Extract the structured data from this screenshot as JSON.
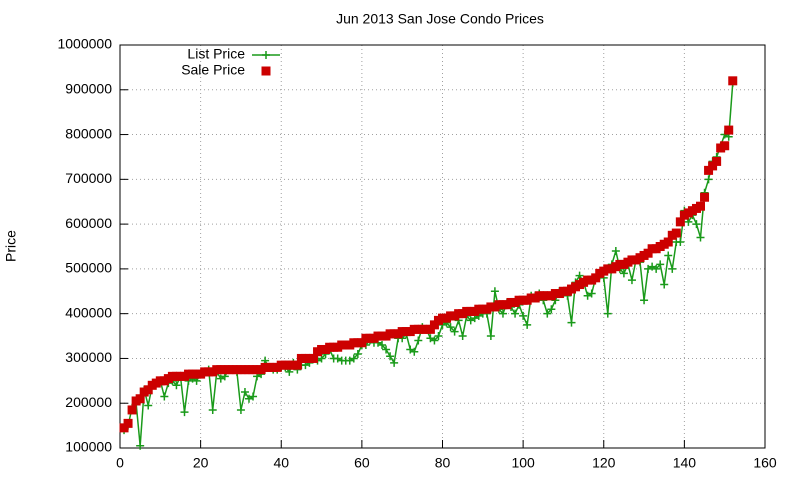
{
  "chart_data": {
    "type": "scatter",
    "title": "Jun 2013 San Jose Condo Prices",
    "y_label": "Price",
    "x": [
      1,
      2,
      3,
      4,
      5,
      6,
      7,
      8,
      9,
      10,
      11,
      12,
      13,
      14,
      15,
      16,
      17,
      18,
      19,
      20,
      21,
      22,
      23,
      24,
      25,
      26,
      27,
      28,
      29,
      30,
      31,
      32,
      33,
      34,
      35,
      36,
      37,
      38,
      39,
      40,
      41,
      42,
      43,
      44,
      45,
      46,
      47,
      48,
      49,
      50,
      51,
      52,
      53,
      54,
      55,
      56,
      57,
      58,
      59,
      60,
      61,
      62,
      63,
      64,
      65,
      66,
      67,
      68,
      69,
      70,
      71,
      72,
      73,
      74,
      75,
      76,
      77,
      78,
      79,
      80,
      81,
      82,
      83,
      84,
      85,
      86,
      87,
      88,
      89,
      90,
      91,
      92,
      93,
      94,
      95,
      96,
      97,
      98,
      99,
      100,
      101,
      102,
      103,
      104,
      105,
      106,
      107,
      108,
      109,
      110,
      111,
      112,
      113,
      114,
      115,
      116,
      117,
      118,
      119,
      120,
      121,
      122,
      123,
      124,
      125,
      126,
      127,
      128,
      129,
      130,
      131,
      132,
      133,
      134,
      135,
      136,
      137,
      138,
      139,
      140,
      141,
      142,
      143,
      144,
      145,
      146,
      147,
      148,
      149,
      150,
      151,
      152
    ],
    "series": [
      {
        "name": "List Price",
        "color": "#1a9a1a",
        "style": "linespoints",
        "values": [
          140000,
          150000,
          190000,
          200000,
          105000,
          230000,
          195000,
          240000,
          245000,
          250000,
          215000,
          245000,
          250000,
          240000,
          260000,
          180000,
          250000,
          255000,
          250000,
          265000,
          270000,
          275000,
          185000,
          270000,
          255000,
          260000,
          275000,
          275000,
          270000,
          185000,
          225000,
          210000,
          215000,
          260000,
          265000,
          295000,
          280000,
          275000,
          275000,
          280000,
          280000,
          270000,
          290000,
          275000,
          285000,
          285000,
          290000,
          300000,
          295000,
          300000,
          310000,
          320000,
          300000,
          300000,
          295000,
          295000,
          295000,
          300000,
          310000,
          330000,
          330000,
          340000,
          335000,
          335000,
          330000,
          320000,
          305000,
          290000,
          345000,
          345000,
          355000,
          320000,
          315000,
          340000,
          370000,
          365000,
          345000,
          340000,
          350000,
          375000,
          380000,
          370000,
          360000,
          385000,
          350000,
          395000,
          385000,
          390000,
          395000,
          400000,
          400000,
          350000,
          450000,
          410000,
          400000,
          425000,
          415000,
          400000,
          420000,
          395000,
          375000,
          440000,
          440000,
          445000,
          430000,
          400000,
          410000,
          430000,
          450000,
          445000,
          440000,
          380000,
          470000,
          485000,
          470000,
          440000,
          445000,
          480000,
          485000,
          480000,
          400000,
          510000,
          540000,
          500000,
          490000,
          510000,
          475000,
          520000,
          515000,
          430000,
          500000,
          505000,
          500000,
          510000,
          465000,
          530000,
          500000,
          560000,
          560000,
          630000,
          605000,
          620000,
          600000,
          570000,
          670000,
          700000,
          740000,
          750000,
          775000,
          800000,
          795000,
          915000
        ]
      },
      {
        "name": "Sale Price",
        "color": "#cc0000",
        "style": "points",
        "values": [
          145000,
          155000,
          185000,
          205000,
          210000,
          225000,
          230000,
          240000,
          245000,
          250000,
          250000,
          255000,
          260000,
          260000,
          260000,
          260000,
          265000,
          265000,
          265000,
          265000,
          270000,
          270000,
          270000,
          275000,
          275000,
          275000,
          275000,
          275000,
          275000,
          275000,
          275000,
          275000,
          275000,
          275000,
          275000,
          280000,
          280000,
          280000,
          280000,
          285000,
          285000,
          285000,
          285000,
          285000,
          300000,
          300000,
          300000,
          300000,
          315000,
          320000,
          320000,
          325000,
          325000,
          325000,
          330000,
          330000,
          330000,
          335000,
          335000,
          335000,
          345000,
          345000,
          345000,
          350000,
          350000,
          350000,
          355000,
          355000,
          355000,
          360000,
          360000,
          360000,
          365000,
          365000,
          365000,
          365000,
          365000,
          375000,
          385000,
          390000,
          390000,
          395000,
          395000,
          400000,
          400000,
          405000,
          405000,
          405000,
          410000,
          410000,
          410000,
          415000,
          415000,
          420000,
          420000,
          420000,
          425000,
          425000,
          430000,
          430000,
          430000,
          435000,
          435000,
          440000,
          440000,
          440000,
          440000,
          445000,
          445000,
          450000,
          450000,
          455000,
          460000,
          465000,
          470000,
          475000,
          475000,
          480000,
          490000,
          495000,
          500000,
          500000,
          505000,
          510000,
          510000,
          515000,
          520000,
          520000,
          525000,
          530000,
          535000,
          545000,
          545000,
          550000,
          555000,
          560000,
          575000,
          580000,
          605000,
          620000,
          625000,
          630000,
          635000,
          640000,
          660000,
          720000,
          730000,
          740000,
          770000,
          775000,
          810000,
          920000
        ]
      }
    ],
    "xlim": [
      0,
      160
    ],
    "xticks": [
      0,
      20,
      40,
      60,
      80,
      100,
      120,
      140,
      160
    ],
    "ylim": [
      100000,
      1000000
    ],
    "yticks": [
      100000,
      200000,
      300000,
      400000,
      500000,
      600000,
      700000,
      800000,
      900000,
      1000000
    ],
    "grid": true,
    "legend": "top-left"
  }
}
